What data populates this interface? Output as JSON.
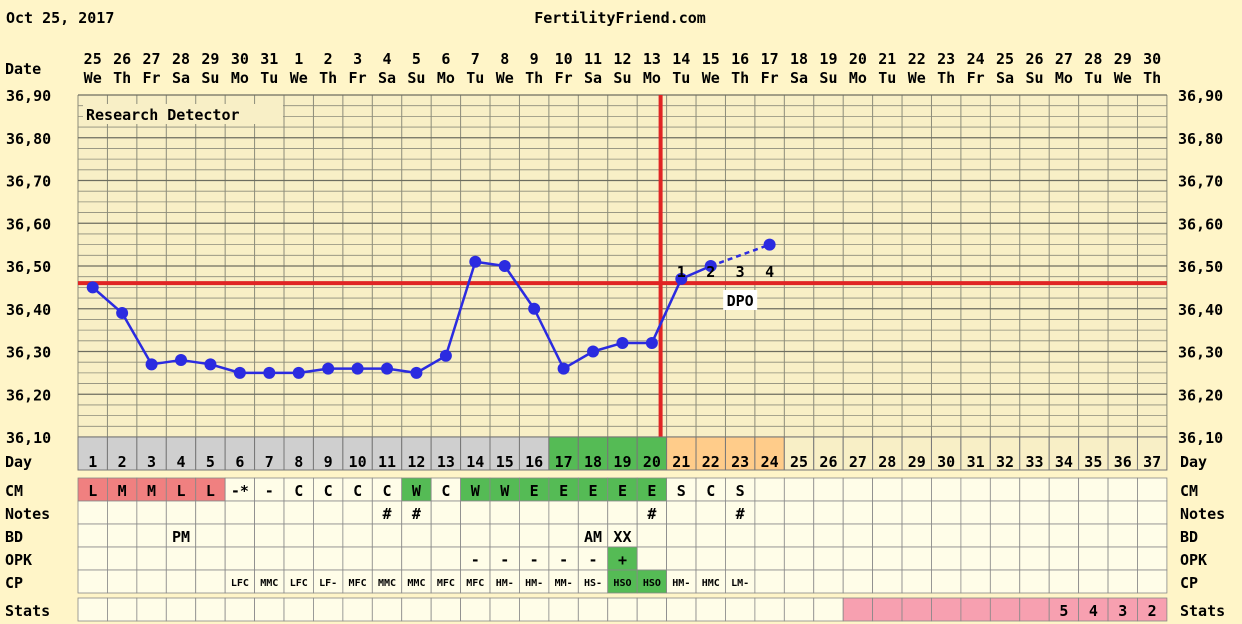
{
  "header": {
    "date": "Oct 25, 2017",
    "site": "FertilityFriend.com"
  },
  "colors": {
    "background": "#FFF5C8",
    "plot_bg": "#F8EFC6",
    "grid": "#8C8C7A",
    "temp_line": "#2B2BE0",
    "coverline": "#E02424",
    "day_row_gray": "#CFCFCF",
    "fertile_green": "#55BB55",
    "dpo_orange": "#FFCC8A",
    "period_red": "#F08080",
    "stats_pink": "#F7A0B0"
  },
  "labels": {
    "date": "Date",
    "day": "Day",
    "cm": "CM",
    "notes": "Notes",
    "bd": "BD",
    "opk": "OPK",
    "cp": "CP",
    "stats": "Stats",
    "detector": "Research Detector",
    "dpo": "DPO"
  },
  "dates": [
    "25",
    "26",
    "27",
    "28",
    "29",
    "30",
    "31",
    "1",
    "2",
    "3",
    "4",
    "5",
    "6",
    "7",
    "8",
    "9",
    "10",
    "11",
    "12",
    "13",
    "14",
    "15",
    "16",
    "17",
    "18",
    "19",
    "20",
    "21",
    "22",
    "23",
    "24",
    "25",
    "26",
    "27",
    "28",
    "29",
    "30"
  ],
  "weekdays": [
    "We",
    "Th",
    "Fr",
    "Sa",
    "Su",
    "Mo",
    "Tu",
    "We",
    "Th",
    "Fr",
    "Sa",
    "Su",
    "Mo",
    "Tu",
    "We",
    "Th",
    "Fr",
    "Sa",
    "Su",
    "Mo",
    "Tu",
    "We",
    "Th",
    "Fr",
    "Sa",
    "Su",
    "Mo",
    "Tu",
    "We",
    "Th",
    "Fr",
    "Sa",
    "Su",
    "Mo",
    "Tu",
    "We",
    "Th"
  ],
  "days": [
    "1",
    "2",
    "3",
    "4",
    "5",
    "6",
    "7",
    "8",
    "9",
    "10",
    "11",
    "12",
    "13",
    "14",
    "15",
    "16",
    "17",
    "18",
    "19",
    "20",
    "21",
    "22",
    "23",
    "24",
    "25",
    "26",
    "27",
    "28",
    "29",
    "30",
    "31",
    "32",
    "33",
    "34",
    "35",
    "36",
    "37"
  ],
  "chart_data": {
    "type": "line",
    "title": "",
    "ylim": [
      36.1,
      36.9
    ],
    "yticks": [
      "36,10",
      "36,20",
      "36,30",
      "36,40",
      "36,50",
      "36,60",
      "36,70",
      "36,80",
      "36,90"
    ],
    "x": [
      1,
      2,
      3,
      4,
      5,
      6,
      7,
      8,
      9,
      10,
      11,
      12,
      13,
      14,
      15,
      16,
      17,
      18,
      19,
      20,
      21,
      22,
      23,
      24,
      25,
      26,
      27,
      28,
      29,
      30,
      31,
      32,
      33,
      34,
      35,
      36,
      37
    ],
    "series": [
      {
        "values": [
          36.45,
          36.39,
          36.27,
          36.28,
          36.27,
          36.25,
          36.25,
          36.25,
          36.26,
          36.26,
          36.26,
          36.25,
          36.29,
          36.51,
          36.5,
          36.4,
          36.26,
          36.3,
          36.32,
          36.32,
          36.47,
          36.5,
          null,
          36.55,
          null,
          null,
          null,
          null,
          null,
          null,
          null,
          null,
          null,
          null,
          null,
          null,
          null
        ]
      }
    ],
    "coverline": 36.46,
    "ovulation_day": 20,
    "dpo_marks": [
      {
        "day": 21,
        "label": "1"
      },
      {
        "day": 22,
        "label": "2"
      },
      {
        "day": 23,
        "label": "3"
      },
      {
        "day": 24,
        "label": "4"
      }
    ],
    "grid": true
  },
  "rows": {
    "cm": [
      "L",
      "M",
      "M",
      "L",
      "L",
      "-*",
      "-",
      "C",
      "C",
      "C",
      "C",
      "W",
      "C",
      "W",
      "W",
      "E",
      "E",
      "E",
      "E",
      "E",
      "S",
      "C",
      "S",
      "",
      "",
      "",
      "",
      "",
      "",
      "",
      "",
      "",
      "",
      "",
      "",
      "",
      ""
    ],
    "notes": [
      "",
      "",
      "",
      "",
      "",
      "",
      "",
      "",
      "",
      "",
      "#",
      "#",
      "",
      "",
      "",
      "",
      "",
      "",
      "",
      "#",
      "",
      "",
      "#",
      "",
      "",
      "",
      "",
      "",
      "",
      "",
      "",
      "",
      "",
      "",
      "",
      "",
      ""
    ],
    "bd": [
      "",
      "",
      "",
      "PM",
      "",
      "",
      "",
      "",
      "",
      "",
      "",
      "",
      "",
      "",
      "",
      "",
      "",
      "AM",
      "XX",
      "",
      "",
      "",
      "",
      "",
      "",
      "",
      "",
      "",
      "",
      "",
      "",
      "",
      "",
      "",
      "",
      "",
      ""
    ],
    "opk": [
      "",
      "",
      "",
      "",
      "",
      "",
      "",
      "",
      "",
      "",
      "",
      "",
      "",
      "-",
      "-",
      "-",
      "-",
      "-",
      "+",
      "",
      "",
      "",
      "",
      "",
      "",
      "",
      "",
      "",
      "",
      "",
      "",
      "",
      "",
      "",
      "",
      "",
      ""
    ],
    "cp": [
      "",
      "",
      "",
      "",
      "",
      "LFC",
      "MMC",
      "LFC",
      "LF-",
      "MFC",
      "MMC",
      "MMC",
      "MFC",
      "MFC",
      "HM-",
      "HM-",
      "MM-",
      "HS-",
      "HSO",
      "HSO",
      "HM-",
      "HMC",
      "LM-",
      "",
      "",
      "",
      "",
      "",
      "",
      "",
      "",
      "",
      "",
      "",
      "",
      "",
      ""
    ],
    "stats": [
      "",
      "",
      "",
      "",
      "",
      "",
      "",
      "",
      "",
      "",
      "",
      "",
      "",
      "",
      "",
      "",
      "",
      "",
      "",
      "",
      "",
      "",
      "",
      "",
      "",
      "",
      "",
      "",
      "",
      "",
      "",
      "",
      "",
      "5",
      "4",
      "3",
      "2"
    ]
  }
}
